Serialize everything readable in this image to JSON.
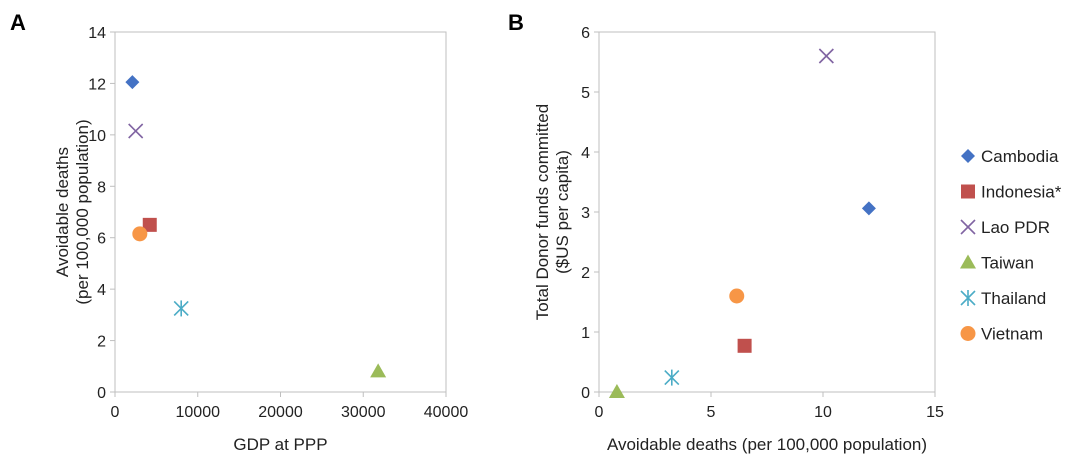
{
  "legend": {
    "placement": "right",
    "entries": [
      {
        "name": "Cambodia",
        "marker": "diamond",
        "color": "#4472c4"
      },
      {
        "name": "Indonesia*",
        "marker": "square",
        "color": "#c0504d"
      },
      {
        "name": "Lao PDR",
        "marker": "x",
        "color": "#8064a2"
      },
      {
        "name": "Taiwan",
        "marker": "triangle",
        "color": "#9bbb59"
      },
      {
        "name": "Thailand",
        "marker": "star",
        "color": "#4bacc6"
      },
      {
        "name": "Vietnam",
        "marker": "circle",
        "color": "#f79646"
      }
    ]
  },
  "chart_data": [
    {
      "type": "scatter",
      "panel_label": "A",
      "xlabel": "GDP at PPP",
      "ylabel_lines": [
        "Avoidable deaths",
        "(per 100,000 population)"
      ],
      "xlim": [
        0,
        40000
      ],
      "ylim": [
        0,
        14
      ],
      "xticks": [
        0,
        10000,
        20000,
        30000,
        40000
      ],
      "yticks": [
        0,
        2,
        4,
        6,
        8,
        10,
        12,
        14
      ],
      "grid": false,
      "series": [
        {
          "name": "Cambodia",
          "points": [
            [
              2100,
              12.05
            ]
          ]
        },
        {
          "name": "Indonesia*",
          "points": [
            [
              4200,
              6.5
            ]
          ]
        },
        {
          "name": "Lao PDR",
          "points": [
            [
              2500,
              10.15
            ]
          ]
        },
        {
          "name": "Taiwan",
          "points": [
            [
              31800,
              0.8
            ]
          ]
        },
        {
          "name": "Thailand",
          "points": [
            [
              8000,
              3.25
            ]
          ]
        },
        {
          "name": "Vietnam",
          "points": [
            [
              3000,
              6.15
            ]
          ]
        }
      ]
    },
    {
      "type": "scatter",
      "panel_label": "B",
      "xlabel": "Avoidable deaths (per 100,000 population)",
      "ylabel_lines": [
        "Total Donor funds committed",
        "($US per capita)"
      ],
      "xlim": [
        0,
        15
      ],
      "ylim": [
        0,
        6
      ],
      "xticks": [
        0,
        5,
        10,
        15
      ],
      "yticks": [
        0,
        1,
        2,
        3,
        4,
        5,
        6
      ],
      "grid": false,
      "series": [
        {
          "name": "Cambodia",
          "points": [
            [
              12.05,
              3.06
            ]
          ]
        },
        {
          "name": "Indonesia*",
          "points": [
            [
              6.5,
              0.77
            ]
          ]
        },
        {
          "name": "Lao PDR",
          "points": [
            [
              10.15,
              5.6
            ]
          ]
        },
        {
          "name": "Taiwan",
          "points": [
            [
              0.8,
              0.0
            ]
          ]
        },
        {
          "name": "Thailand",
          "points": [
            [
              3.25,
              0.24
            ]
          ]
        },
        {
          "name": "Vietnam",
          "points": [
            [
              6.15,
              1.6
            ]
          ]
        }
      ]
    }
  ]
}
